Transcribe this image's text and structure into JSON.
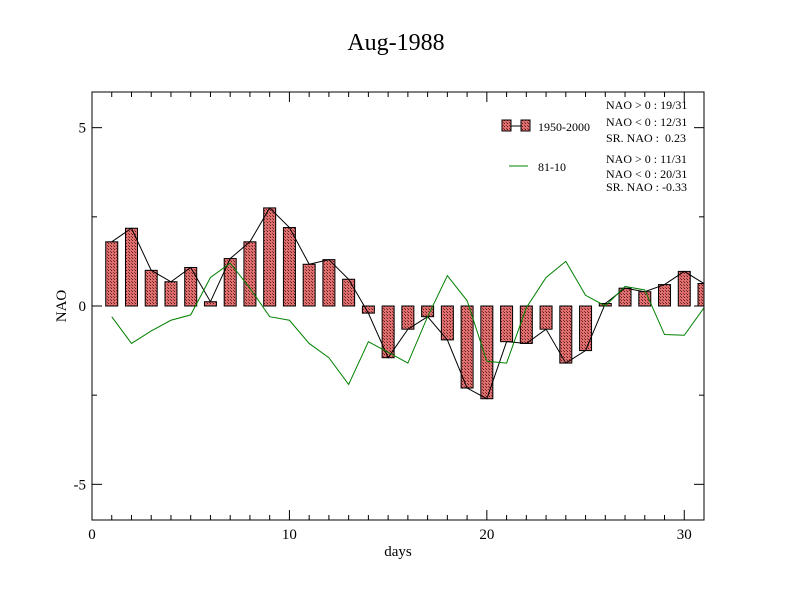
{
  "chart_data": {
    "type": "bar",
    "title": "Aug-1988",
    "xlabel": "days",
    "ylabel": "NAO",
    "xlim": [
      0,
      31
    ],
    "ylim": [
      -6,
      6
    ],
    "x_ticks": [
      0,
      10,
      20,
      30
    ],
    "y_ticks": [
      -5,
      0,
      5
    ],
    "x_tick_labels": [
      "0",
      "10",
      "20",
      "30"
    ],
    "y_tick_labels": [
      "-5",
      "0",
      "5"
    ],
    "days": [
      1,
      2,
      3,
      4,
      5,
      6,
      7,
      8,
      9,
      10,
      11,
      12,
      13,
      14,
      15,
      16,
      17,
      18,
      19,
      20,
      21,
      22,
      23,
      24,
      25,
      26,
      27,
      28,
      29,
      30,
      31
    ],
    "series": [
      {
        "name": "1950-2000",
        "style": "bar",
        "color": "#e07070",
        "values": [
          1.8,
          2.18,
          1.0,
          0.68,
          1.08,
          0.12,
          1.33,
          1.8,
          2.75,
          2.2,
          1.17,
          1.3,
          0.75,
          -0.2,
          -1.45,
          -0.65,
          -0.3,
          -0.95,
          -2.3,
          -2.6,
          -1.0,
          -1.05,
          -0.65,
          -1.6,
          -1.25,
          0.07,
          0.5,
          0.4,
          0.6,
          0.97,
          0.63
        ]
      },
      {
        "name": "81-10",
        "style": "line",
        "color": "#008000",
        "values": [
          -0.3,
          -1.05,
          -0.7,
          -0.4,
          -0.25,
          0.8,
          1.2,
          0.5,
          -0.3,
          -0.4,
          -1.05,
          -1.45,
          -2.2,
          -1.0,
          -1.3,
          -1.6,
          -0.3,
          0.85,
          0.15,
          -1.55,
          -1.6,
          -0.05,
          0.8,
          1.25,
          0.3,
          0.0,
          0.55,
          0.45,
          -0.8,
          -0.82,
          -0.05
        ]
      }
    ],
    "legend": {
      "placement": "top-right",
      "entries": [
        {
          "label": "1950-2000",
          "stats": [
            "NAO > 0 : 19/31",
            "NAO < 0 : 12/31",
            "SR. NAO :  0.23"
          ]
        },
        {
          "label": "81-10",
          "stats": [
            "NAO > 0 : 11/31",
            "NAO < 0 : 20/31",
            "SR. NAO : -0.33"
          ]
        }
      ]
    }
  }
}
